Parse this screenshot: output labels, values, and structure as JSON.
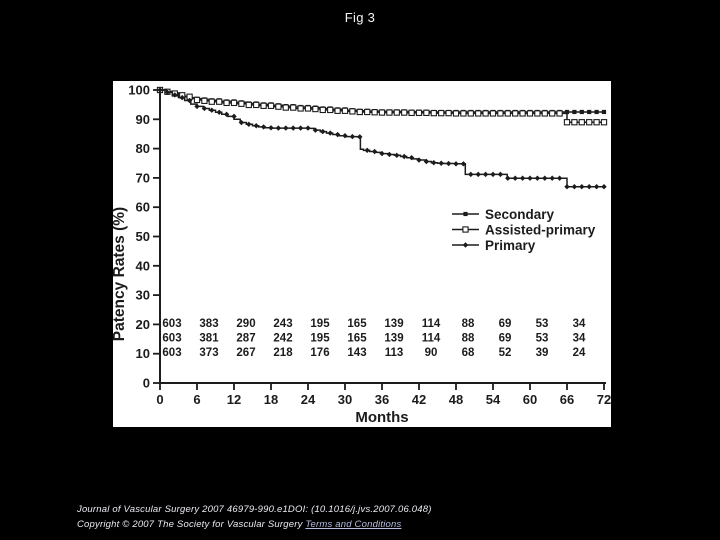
{
  "page": {
    "title": "Fig 3",
    "background": "#000000"
  },
  "chart_data": {
    "type": "line",
    "style": "kaplan-meier-step",
    "title": "",
    "xlabel": "Months",
    "ylabel": "Patency Rates (%)",
    "xlim": [
      0,
      72
    ],
    "ylim": [
      0,
      100
    ],
    "xticks": [
      0,
      6,
      12,
      18,
      24,
      30,
      36,
      42,
      48,
      54,
      60,
      66,
      72
    ],
    "yticks": [
      0,
      10,
      20,
      30,
      40,
      50,
      60,
      70,
      80,
      90,
      100
    ],
    "grid": false,
    "line_color": "#1c1c1c",
    "legend_position": "inside-right",
    "series": [
      {
        "name": "Secondary",
        "marker": "filled-square",
        "points": [
          [
            0,
            100
          ],
          [
            1,
            99.5
          ],
          [
            2,
            99
          ],
          [
            3,
            98.4
          ],
          [
            4,
            97.9
          ],
          [
            5,
            97.4
          ],
          [
            6,
            97
          ],
          [
            7,
            96.8
          ],
          [
            8,
            96.5
          ],
          [
            10,
            96.1
          ],
          [
            12,
            95.8
          ],
          [
            14,
            95.4
          ],
          [
            16,
            95.1
          ],
          [
            18,
            94.8
          ],
          [
            20,
            94.5
          ],
          [
            22,
            94.2
          ],
          [
            24,
            94
          ],
          [
            26,
            93.7
          ],
          [
            28,
            93.4
          ],
          [
            30,
            93.1
          ],
          [
            32,
            92.9
          ],
          [
            34,
            92.8
          ],
          [
            36,
            92.7
          ],
          [
            40,
            92.6
          ],
          [
            44,
            92.5
          ],
          [
            72,
            92.5
          ]
        ]
      },
      {
        "name": "Assisted-primary",
        "marker": "open-square",
        "points": [
          [
            0,
            100
          ],
          [
            1,
            99.4
          ],
          [
            2,
            98.8
          ],
          [
            3,
            98.2
          ],
          [
            4,
            97.7
          ],
          [
            5,
            97.1
          ],
          [
            6,
            96.6
          ],
          [
            7,
            96.3
          ],
          [
            8,
            96
          ],
          [
            10,
            95.6
          ],
          [
            12,
            95.3
          ],
          [
            14,
            94.9
          ],
          [
            16,
            94.6
          ],
          [
            18,
            94.3
          ],
          [
            20,
            94
          ],
          [
            22,
            93.7
          ],
          [
            24,
            93.5
          ],
          [
            26,
            93.2
          ],
          [
            28,
            92.9
          ],
          [
            30,
            92.7
          ],
          [
            32,
            92.5
          ],
          [
            34,
            92.4
          ],
          [
            36,
            92.3
          ],
          [
            40,
            92.2
          ],
          [
            44,
            92.1
          ],
          [
            48,
            92
          ],
          [
            66,
            92
          ],
          [
            66,
            89
          ],
          [
            72,
            89
          ]
        ]
      },
      {
        "name": "Primary",
        "marker": "filled-diamond",
        "points": [
          [
            0,
            100
          ],
          [
            1,
            99.2
          ],
          [
            2,
            98.3
          ],
          [
            3,
            97.4
          ],
          [
            4,
            96.4
          ],
          [
            5,
            95.2
          ],
          [
            6,
            94.4
          ],
          [
            7,
            93.7
          ],
          [
            8,
            93.1
          ],
          [
            9,
            92.4
          ],
          [
            10,
            91.7
          ],
          [
            11,
            91
          ],
          [
            12,
            90
          ],
          [
            13,
            88.9
          ],
          [
            14,
            88.3
          ],
          [
            15,
            87.8
          ],
          [
            16,
            87.4
          ],
          [
            17,
            87.1
          ],
          [
            18,
            87
          ],
          [
            24,
            86.9
          ],
          [
            25,
            86.3
          ],
          [
            26,
            85.8
          ],
          [
            27,
            85.3
          ],
          [
            28,
            84.8
          ],
          [
            29,
            84.4
          ],
          [
            30,
            84.1
          ],
          [
            32,
            84
          ],
          [
            32.5,
            79.8
          ],
          [
            33,
            79.4
          ],
          [
            34,
            79
          ],
          [
            35,
            78.7
          ],
          [
            36,
            78.3
          ],
          [
            37,
            78
          ],
          [
            38,
            77.7
          ],
          [
            39,
            77.3
          ],
          [
            40,
            76.9
          ],
          [
            41,
            76.5
          ],
          [
            42,
            76.1
          ],
          [
            43,
            75.6
          ],
          [
            44,
            75.2
          ],
          [
            45,
            75
          ],
          [
            46,
            74.9
          ],
          [
            48,
            74.8
          ],
          [
            49.5,
            71.2
          ],
          [
            56.3,
            69.9
          ],
          [
            66,
            67
          ],
          [
            72,
            67
          ]
        ]
      }
    ],
    "numbers_at_risk": {
      "months": [
        0,
        6,
        12,
        18,
        24,
        30,
        36,
        42,
        48,
        54,
        60,
        66
      ],
      "rows": [
        [
          603,
          383,
          290,
          243,
          195,
          165,
          139,
          114,
          88,
          69,
          53,
          34
        ],
        [
          603,
          381,
          287,
          242,
          195,
          165,
          139,
          114,
          88,
          69,
          53,
          34
        ],
        [
          603,
          373,
          267,
          218,
          176,
          143,
          113,
          90,
          68,
          52,
          39,
          24
        ]
      ]
    }
  },
  "footer": {
    "citation": "Journal of Vascular Surgery 2007 46979-990.e1DOI: (10.1016/j.jvs.2007.06.048)",
    "copyright": "Copyright © 2007 The Society for Vascular Surgery ",
    "terms_link": "Terms and Conditions"
  }
}
